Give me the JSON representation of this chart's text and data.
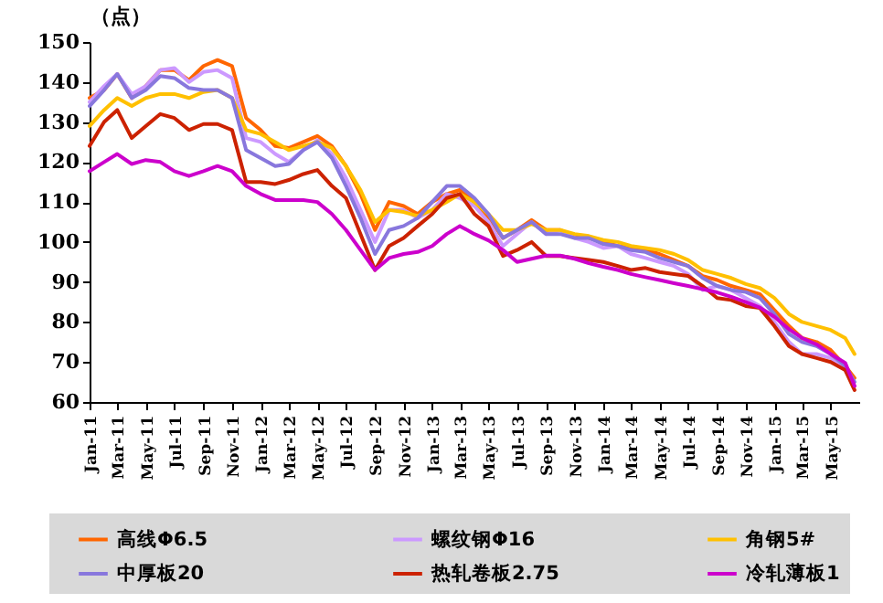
{
  "chart_data": {
    "type": "line",
    "ylabel": "（点）",
    "x": [
      "2011-01",
      "2011-02",
      "2011-03",
      "2011-04",
      "2011-05",
      "2011-06",
      "2011-07",
      "2011-08",
      "2011-09",
      "2011-10",
      "2011-11",
      "2011-12",
      "2012-01",
      "2012-02",
      "2012-03",
      "2012-04",
      "2012-05",
      "2012-06",
      "2012-07",
      "2012-08",
      "2012-09",
      "2012-10",
      "2012-11",
      "2012-12",
      "2013-01",
      "2013-02",
      "2013-03",
      "2013-04",
      "2013-05",
      "2013-06",
      "2013-07",
      "2013-08",
      "2013-09",
      "2013-10",
      "2013-11",
      "2013-12",
      "2014-01",
      "2014-02",
      "2014-03",
      "2014-04",
      "2014-05",
      "2014-06",
      "2014-07",
      "2014-08",
      "2014-09",
      "2014-10",
      "2014-11",
      "2014-12",
      "2015-01",
      "2015-02",
      "2015-03",
      "2015-04",
      "2015-05",
      "2015-06",
      "2015-06-21"
    ],
    "series": [
      {
        "name": "高线Φ6.5",
        "color": "#ff6600",
        "values": [
          136,
          138,
          142,
          136,
          139,
          143,
          143,
          140.5,
          144,
          145.5,
          144,
          131,
          128,
          124,
          123.5,
          125,
          126.5,
          124,
          119,
          112,
          103,
          110,
          109,
          107,
          110,
          112,
          113,
          110,
          106,
          101,
          103,
          105.5,
          103,
          103,
          101.5,
          101,
          100,
          99,
          98.5,
          98,
          97,
          95.5,
          94,
          91.5,
          90.5,
          89,
          88,
          87,
          83,
          79,
          76,
          75,
          73,
          69,
          66
        ]
      },
      {
        "name": "螺纹钢Φ16",
        "color": "#cc99ff",
        "values": [
          135,
          139,
          142,
          137,
          139,
          143,
          143.5,
          140,
          142.5,
          143,
          141,
          126,
          125,
          122,
          120,
          123,
          125.5,
          122,
          116,
          108,
          100,
          108,
          108,
          106,
          108,
          112,
          111,
          109,
          105,
          99,
          102,
          105,
          102,
          103,
          101,
          100,
          98.5,
          99,
          97,
          96,
          95,
          94,
          92,
          88,
          89,
          88,
          86,
          84,
          80,
          75,
          72,
          72,
          71,
          68,
          64
        ]
      },
      {
        "name": "角钢5#",
        "color": "#ffc000",
        "values": [
          129,
          133,
          136,
          134,
          136,
          137,
          137,
          136,
          137.5,
          138,
          136,
          128,
          127,
          125,
          123,
          124,
          125,
          123.5,
          119,
          113,
          105,
          108,
          107.5,
          106.5,
          108,
          110,
          112,
          110,
          107,
          103,
          103,
          104.5,
          103,
          103,
          102,
          101.5,
          100.5,
          100,
          99,
          98.5,
          98,
          97,
          95.5,
          93,
          92,
          91,
          89.5,
          88.5,
          86,
          82,
          80,
          79,
          78,
          76,
          72
        ]
      },
      {
        "name": "中厚板20",
        "color": "#8877dd",
        "values": [
          134,
          138,
          142,
          136,
          138,
          141.5,
          141,
          138.5,
          138,
          138,
          136,
          123,
          121,
          119,
          119.5,
          123,
          125,
          121,
          114,
          106,
          97,
          103,
          104,
          106,
          110,
          114,
          114,
          111,
          107,
          101,
          103,
          105,
          102,
          102,
          101,
          101,
          99.5,
          99,
          98,
          97.5,
          96,
          95,
          94,
          91,
          89,
          88,
          87.5,
          86,
          82,
          77,
          75,
          74,
          72,
          69,
          65
        ]
      },
      {
        "name": "热轧卷板2.75",
        "color": "#cc2200",
        "values": [
          124,
          130,
          133,
          126,
          129,
          132,
          131,
          128,
          129.5,
          129.5,
          128,
          115,
          115,
          114.5,
          115.5,
          117,
          118,
          114,
          111,
          102,
          93,
          99,
          101,
          104,
          107,
          111,
          112,
          107,
          104,
          96.5,
          98,
          100,
          96.5,
          96.5,
          96,
          95.5,
          95,
          94,
          93,
          93.5,
          92.5,
          92,
          91.5,
          89,
          86,
          85.5,
          84,
          83.5,
          79,
          74,
          72,
          71,
          70,
          68,
          63
        ]
      },
      {
        "name": "冷轧薄板1",
        "color": "#cc00cc",
        "values": [
          117.7,
          120,
          122,
          119.5,
          120.5,
          120,
          117.7,
          116.5,
          117.7,
          119,
          117.7,
          114,
          112,
          110.5,
          110.5,
          110.5,
          110,
          107,
          103,
          98,
          93,
          96,
          97,
          97.5,
          99,
          102,
          104,
          102,
          100.4,
          98,
          95,
          95.8,
          96.6,
          96.6,
          95.8,
          94.7,
          93.8,
          93,
          92,
          91.2,
          90.5,
          89.7,
          89,
          88.2,
          87.4,
          86.3,
          85,
          83.6,
          81.3,
          78.2,
          76,
          74.4,
          72,
          69.8,
          64
        ]
      }
    ],
    "xlim": [
      "2011-01",
      "2015-07"
    ],
    "xticks": [
      {
        "value": "2011-01",
        "label": "Jan-11"
      },
      {
        "value": "2011-03",
        "label": "Mar-11"
      },
      {
        "value": "2011-05",
        "label": "May-11"
      },
      {
        "value": "2011-07",
        "label": "Jul-11"
      },
      {
        "value": "2011-09",
        "label": "Sep-11"
      },
      {
        "value": "2011-11",
        "label": "Nov-11"
      },
      {
        "value": "2012-01",
        "label": "Jan-12"
      },
      {
        "value": "2012-03",
        "label": "Mar-12"
      },
      {
        "value": "2012-05",
        "label": "May-12"
      },
      {
        "value": "2012-07",
        "label": "Jul-12"
      },
      {
        "value": "2012-09",
        "label": "Sep-12"
      },
      {
        "value": "2012-11",
        "label": "Nov-12"
      },
      {
        "value": "2013-01",
        "label": "Jan-13"
      },
      {
        "value": "2013-03",
        "label": "Mar-13"
      },
      {
        "value": "2013-05",
        "label": "May-13"
      },
      {
        "value": "2013-07",
        "label": "Jul-13"
      },
      {
        "value": "2013-09",
        "label": "Sep-13"
      },
      {
        "value": "2013-11",
        "label": "Nov-13"
      },
      {
        "value": "2014-01",
        "label": "Jan-14"
      },
      {
        "value": "2014-03",
        "label": "Mar-14"
      },
      {
        "value": "2014-05",
        "label": "May-14"
      },
      {
        "value": "2014-07",
        "label": "Jul-14"
      },
      {
        "value": "2014-09",
        "label": "Sep-14"
      },
      {
        "value": "2014-11",
        "label": "Nov-14"
      },
      {
        "value": "2015-01",
        "label": "Jan-15"
      },
      {
        "value": "2015-03",
        "label": "Mar-15"
      },
      {
        "value": "2015-05",
        "label": "May-15"
      }
    ],
    "ylim": [
      60,
      150
    ],
    "yticks": [
      60,
      70,
      80,
      90,
      100,
      110,
      120,
      130,
      140,
      150
    ],
    "grid": false,
    "legend": "bottom",
    "line_style": "solid",
    "marker": "none"
  }
}
